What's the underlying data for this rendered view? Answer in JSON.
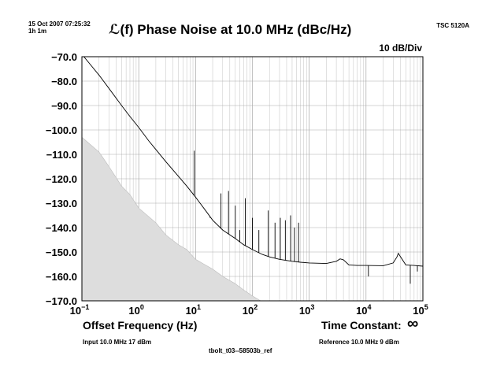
{
  "header": {
    "timestamp": "15 Oct 2007 07:25:32",
    "duration": "1h 1m",
    "title": "ℒ(f) Phase Noise at 10.0 MHz (dBc/Hz)",
    "scale": "10 dB/Div",
    "instrument": "TSC 5120A"
  },
  "footer": {
    "xlabel": "Offset Frequency (Hz)",
    "time_constant_label": "Time Constant:",
    "time_constant_value": "∞",
    "input": "Input 10.0 MHz 17 dBm",
    "reference": "Reference 10.0 MHz 9 dBm",
    "filename": "tbolt_t03--58503b_ref"
  },
  "chart_data": {
    "type": "line",
    "title": "ℒ(f) Phase Noise at 10.0 MHz (dBc/Hz)",
    "xlabel": "Offset Frequency (Hz)",
    "ylabel": "",
    "x_scale": "log",
    "xlim": [
      0.1,
      100000
    ],
    "ylim": [
      -170,
      -70
    ],
    "grid": true,
    "x_ticks": [
      {
        "value": 0.1,
        "base": "10",
        "exp": "−1"
      },
      {
        "value": 1,
        "base": "10",
        "exp": "0"
      },
      {
        "value": 10,
        "base": "10",
        "exp": "1"
      },
      {
        "value": 100,
        "base": "10",
        "exp": "2"
      },
      {
        "value": 1000,
        "base": "10",
        "exp": "3"
      },
      {
        "value": 10000,
        "base": "10",
        "exp": "4"
      },
      {
        "value": 100000,
        "base": "10",
        "exp": "5"
      }
    ],
    "y_ticks": [
      {
        "value": -70,
        "label": "−70.0"
      },
      {
        "value": -80,
        "label": "−80.0"
      },
      {
        "value": -90,
        "label": "−90.0"
      },
      {
        "value": -100,
        "label": "−100.0"
      },
      {
        "value": -110,
        "label": "−110.0"
      },
      {
        "value": -120,
        "label": "−120.0"
      },
      {
        "value": -130,
        "label": "−130.0"
      },
      {
        "value": -140,
        "label": "−140.0"
      },
      {
        "value": -150,
        "label": "−150.0"
      },
      {
        "value": -160,
        "label": "−160.0"
      },
      {
        "value": -170,
        "label": "−170.0"
      }
    ],
    "series": [
      {
        "color": "#000000",
        "x": [
          0.1,
          0.15,
          0.2,
          0.3,
          0.5,
          0.7,
          1,
          1.5,
          2,
          3,
          5,
          7,
          10,
          15,
          20,
          30,
          50,
          70,
          100,
          150,
          200,
          300,
          500,
          700,
          1000,
          2000,
          3000,
          3500,
          4000,
          5000,
          7000,
          10000,
          20000,
          30000,
          35000,
          37000,
          40000,
          50000,
          70000,
          100000
        ],
        "y": [
          -69,
          -74,
          -77.5,
          -83,
          -90,
          -94.5,
          -99,
          -104.5,
          -108,
          -113,
          -119,
          -123,
          -127.5,
          -133,
          -137,
          -141,
          -144.5,
          -147,
          -149,
          -151,
          -152,
          -153,
          -153.8,
          -154.2,
          -154.5,
          -154.7,
          -153.8,
          -152.8,
          -153.2,
          -155.3,
          -155.5,
          -155.5,
          -155.6,
          -154.5,
          -152,
          -150.5,
          -151.8,
          -155.3,
          -155.5,
          -155.8
        ]
      },
      {
        "color": "#dddddd",
        "x": [
          0.1,
          0.2,
          0.3,
          0.5,
          0.7,
          1,
          2,
          3,
          5,
          7,
          10,
          20,
          30,
          50,
          70,
          100,
          140
        ],
        "y": [
          -103,
          -109,
          -115,
          -123,
          -126.5,
          -132,
          -138,
          -143,
          -147,
          -149,
          -153,
          -157,
          -160,
          -163,
          -165.5,
          -168,
          -170
        ]
      }
    ],
    "spurs": [
      {
        "x": 9.5,
        "top": -108.5
      },
      {
        "x": 18,
        "top": -136
      },
      {
        "x": 28,
        "top": -126
      },
      {
        "x": 38,
        "top": -125
      },
      {
        "x": 50,
        "top": -131
      },
      {
        "x": 60,
        "top": -141
      },
      {
        "x": 75,
        "top": -128
      },
      {
        "x": 100,
        "top": -136
      },
      {
        "x": 130,
        "top": -141
      },
      {
        "x": 190,
        "top": -133
      },
      {
        "x": 250,
        "top": -138
      },
      {
        "x": 310,
        "top": -136
      },
      {
        "x": 380,
        "top": -137
      },
      {
        "x": 470,
        "top": -135
      },
      {
        "x": 550,
        "top": -140
      },
      {
        "x": 650,
        "top": -138
      }
    ],
    "down_spikes": [
      {
        "x": 11000,
        "bottom": -160
      },
      {
        "x": 60000,
        "bottom": -163
      },
      {
        "x": 80000,
        "bottom": -158
      }
    ]
  }
}
